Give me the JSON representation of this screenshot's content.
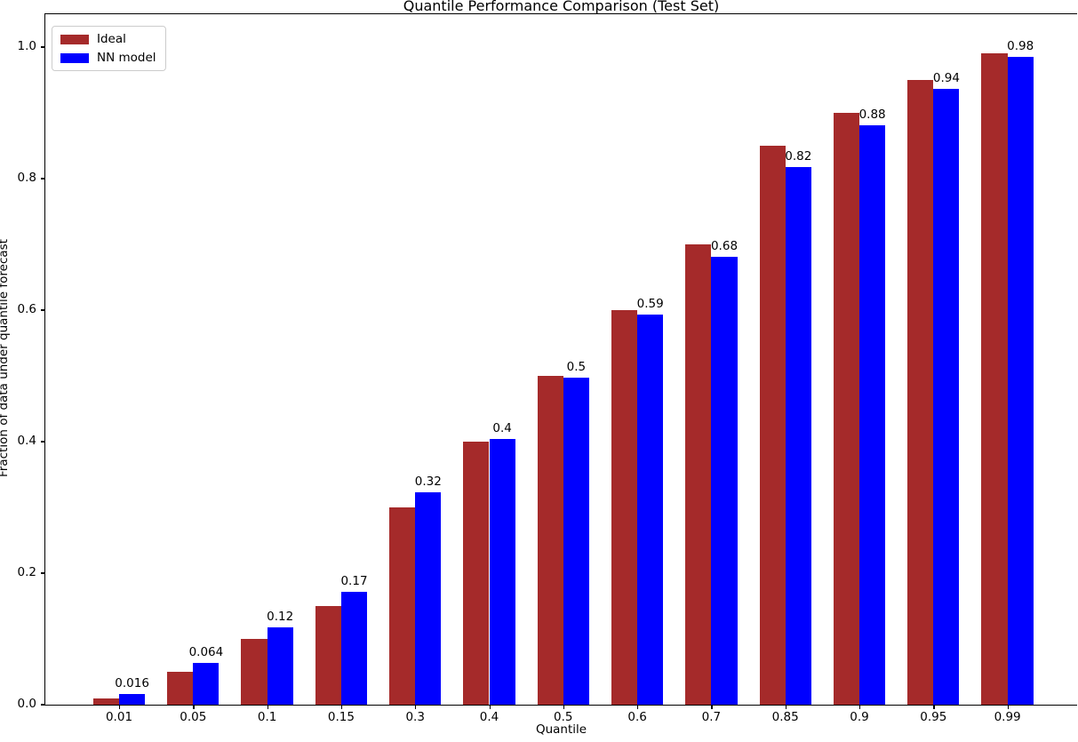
{
  "chart_data": {
    "type": "bar",
    "title": "Quantile Performance Comparison (Test Set)",
    "xlabel": "Quantile",
    "ylabel": "Fraction of data under quantile forecast",
    "categories": [
      "0.01",
      "0.05",
      "0.1",
      "0.15",
      "0.3",
      "0.4",
      "0.5",
      "0.6",
      "0.7",
      "0.85",
      "0.9",
      "0.95",
      "0.99"
    ],
    "series": [
      {
        "name": "Ideal",
        "color": "#A52A2A",
        "values": [
          0.01,
          0.05,
          0.1,
          0.15,
          0.3,
          0.4,
          0.5,
          0.6,
          0.7,
          0.85,
          0.9,
          0.95,
          0.99
        ]
      },
      {
        "name": "NN model",
        "color": "#0000FF",
        "values": [
          0.016,
          0.064,
          0.118,
          0.172,
          0.323,
          0.404,
          0.497,
          0.593,
          0.681,
          0.818,
          0.881,
          0.936,
          0.985
        ],
        "bar_labels": [
          "0.016",
          "0.064",
          "0.12",
          "0.17",
          "0.32",
          "0.4",
          "0.5",
          "0.59",
          "0.68",
          "0.82",
          "0.88",
          "0.94",
          "0.98"
        ]
      }
    ],
    "ylim": [
      0,
      1.05
    ],
    "ytick_labels": [
      "0.0",
      "0.2",
      "0.4",
      "0.6",
      "0.8",
      "1.0"
    ],
    "ytick_values": [
      0.0,
      0.2,
      0.4,
      0.6,
      0.8,
      1.0
    ],
    "grid": false,
    "legend_position": "upper left",
    "bar_label_series": "NN model"
  }
}
